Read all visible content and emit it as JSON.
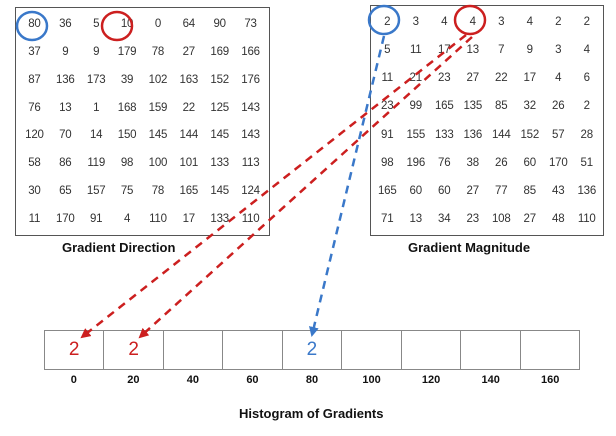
{
  "gradient_direction": {
    "caption": "Gradient Direction",
    "rows": [
      [
        "80",
        "36",
        "5",
        "10",
        "0",
        "64",
        "90",
        "73"
      ],
      [
        "37",
        "9",
        "9",
        "179",
        "78",
        "27",
        "169",
        "166"
      ],
      [
        "87",
        "136",
        "173",
        "39",
        "102",
        "163",
        "152",
        "176"
      ],
      [
        "76",
        "13",
        "1",
        "168",
        "159",
        "22",
        "125",
        "143"
      ],
      [
        "120",
        "70",
        "14",
        "150",
        "145",
        "144",
        "145",
        "143"
      ],
      [
        "58",
        "86",
        "119",
        "98",
        "100",
        "101",
        "133",
        "113"
      ],
      [
        "30",
        "65",
        "157",
        "75",
        "78",
        "165",
        "145",
        "124"
      ],
      [
        "11",
        "170",
        "91",
        "4",
        "110",
        "17",
        "133",
        "110"
      ]
    ]
  },
  "gradient_magnitude": {
    "caption": "Gradient Magnitude",
    "rows": [
      [
        "2",
        "3",
        "4",
        "4",
        "3",
        "4",
        "2",
        "2"
      ],
      [
        "5",
        "11",
        "17",
        "13",
        "7",
        "9",
        "3",
        "4"
      ],
      [
        "11",
        "21",
        "23",
        "27",
        "22",
        "17",
        "4",
        "6"
      ],
      [
        "23",
        "99",
        "165",
        "135",
        "85",
        "32",
        "26",
        "2"
      ],
      [
        "91",
        "155",
        "133",
        "136",
        "144",
        "152",
        "57",
        "28"
      ],
      [
        "98",
        "196",
        "76",
        "38",
        "26",
        "60",
        "170",
        "51"
      ],
      [
        "165",
        "60",
        "60",
        "27",
        "77",
        "85",
        "43",
        "136"
      ],
      [
        "71",
        "13",
        "34",
        "23",
        "108",
        "27",
        "48",
        "110"
      ]
    ]
  },
  "histogram": {
    "caption": "Histogram of Gradients",
    "bins": [
      {
        "label": "0",
        "value": "2",
        "color": "#cc1f1f"
      },
      {
        "label": "20",
        "value": "2",
        "color": "#cc1f1f"
      },
      {
        "label": "40",
        "value": ""
      },
      {
        "label": "60",
        "value": ""
      },
      {
        "label": "80",
        "value": "2",
        "color": "#3a78c9"
      },
      {
        "label": "100",
        "value": ""
      },
      {
        "label": "120",
        "value": ""
      },
      {
        "label": "140",
        "value": ""
      },
      {
        "label": "160",
        "value": ""
      }
    ]
  },
  "colors": {
    "red": "#cc1f1f",
    "blue": "#3a78c9"
  }
}
